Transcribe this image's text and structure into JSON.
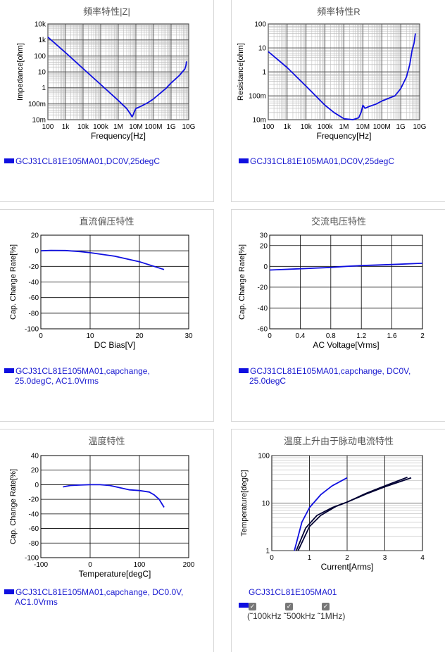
{
  "panels": [
    {
      "title": "頻率特性|Z|",
      "legend": [
        "GCJ31CL81E105MA01,DC0V,25degC"
      ]
    },
    {
      "title": "頻率特性R",
      "legend": [
        "GCJ31CL81E105MA01,DC0V,25degC"
      ]
    },
    {
      "title": "直流偏压特性",
      "legend": [
        "GCJ31CL81E105MA01,capchange,",
        "25.0degC, AC1.0Vrms"
      ]
    },
    {
      "title": "交流电压特性",
      "legend": [
        "GCJ31CL81E105MA01,capchange, DC0V,",
        "25.0degC"
      ]
    },
    {
      "title": "温度特性",
      "legend": [
        "GCJ31CL81E105MA01,capchange, DC0.0V,",
        "AC1.0Vrms"
      ]
    },
    {
      "title": "温度上升由于脉动电流特性",
      "legend": [
        "GCJ31CL81E105MA01"
      ]
    }
  ],
  "ripple_checkboxes": [
    "(˜100kHz",
    "˜500kHz",
    "˜1MHz)"
  ],
  "colors": {
    "series": "#1010e0",
    "dark_series": "#000033"
  },
  "chart_data": [
    {
      "type": "line",
      "xlabel": "Frequency[Hz]",
      "ylabel": "Impedance[ohm]",
      "xscale": "log",
      "yscale": "log",
      "xlim": [
        100,
        10000000000
      ],
      "ylim": [
        0.01,
        10000
      ],
      "xticks": [
        "100",
        "1k",
        "10k",
        "100k",
        "1M",
        "10M",
        "100M",
        "1G",
        "10G"
      ],
      "yticks": [
        "10m",
        "100m",
        "1",
        "10",
        "100",
        "1k",
        "10k"
      ],
      "x": [
        100,
        1000,
        10000,
        100000,
        1000000,
        3000000,
        5000000,
        6000000,
        7000000,
        8000000,
        10000000,
        20000000,
        50000000,
        100000000,
        500000000,
        1000000000,
        3000000000,
        6000000000,
        7000000000,
        7500000000
      ],
      "values": [
        1500,
        160,
        16,
        1.6,
        0.16,
        0.05,
        0.022,
        0.015,
        0.02,
        0.03,
        0.05,
        0.07,
        0.12,
        0.2,
        0.9,
        2,
        6,
        15,
        25,
        45
      ]
    },
    {
      "type": "line",
      "xlabel": "Frequency[Hz]",
      "ylabel": "Resistance[ohm]",
      "xscale": "log",
      "yscale": "log",
      "xlim": [
        100,
        10000000000
      ],
      "ylim": [
        0.01,
        100
      ],
      "xticks": [
        "100",
        "1k",
        "10k",
        "100k",
        "1M",
        "10M",
        "100M",
        "1G",
        "10G"
      ],
      "yticks": [
        "10m",
        "100m",
        "1",
        "10",
        "100"
      ],
      "x": [
        100,
        1000,
        10000,
        100000,
        300000,
        1000000,
        3000000,
        6000000,
        8000000,
        10000000,
        13000000,
        20000000,
        50000000,
        100000000,
        500000000,
        1000000000,
        2000000000,
        3000000000,
        4000000000,
        5000000000,
        6000000000
      ],
      "values": [
        7,
        1.5,
        0.25,
        0.04,
        0.02,
        0.011,
        0.01,
        0.012,
        0.02,
        0.04,
        0.03,
        0.035,
        0.045,
        0.06,
        0.1,
        0.2,
        0.6,
        2,
        8,
        15,
        40
      ]
    },
    {
      "type": "line",
      "xlabel": "DC Bias[V]",
      "ylabel": "Cap. Change Rate[%]",
      "xlim": [
        0,
        30
      ],
      "ylim": [
        -100,
        20
      ],
      "xticks": [
        "0",
        "10",
        "20",
        "30"
      ],
      "yticks": [
        "-100",
        "-80",
        "-60",
        "-40",
        "-20",
        "0",
        "20"
      ],
      "x": [
        0,
        2,
        5,
        8,
        10,
        15,
        20,
        25
      ],
      "values": [
        0,
        0.5,
        0.3,
        -1,
        -2.5,
        -7,
        -14,
        -24
      ]
    },
    {
      "type": "line",
      "xlabel": "AC Voltage[Vrms]",
      "ylabel": "Cap. Change Rate[%]",
      "xlim": [
        0,
        2
      ],
      "ylim": [
        -60,
        30
      ],
      "xticks": [
        "0",
        "0.4",
        "0.8",
        "1.2",
        "1.6",
        "2"
      ],
      "yticks": [
        "-60",
        "-40",
        "-20",
        "0",
        "20",
        "30"
      ],
      "x": [
        0,
        0.4,
        0.8,
        1.0,
        1.2,
        1.6,
        2.0
      ],
      "values": [
        -3.5,
        -2.3,
        -1,
        0,
        0.8,
        1.8,
        3
      ]
    },
    {
      "type": "line",
      "xlabel": "Temperature[degC]",
      "ylabel": "Cap. Change Rate[%]",
      "xlim": [
        -100,
        200
      ],
      "ylim": [
        -100,
        40
      ],
      "xticks": [
        "-100",
        "0",
        "100",
        "200"
      ],
      "yticks": [
        "-100",
        "-80",
        "-60",
        "-40",
        "-20",
        "0",
        "20",
        "40"
      ],
      "x": [
        -55,
        -40,
        -20,
        0,
        20,
        40,
        60,
        80,
        100,
        120,
        130,
        140,
        150
      ],
      "values": [
        -3,
        -1,
        -0.5,
        0,
        0,
        -1,
        -4,
        -7,
        -8,
        -10,
        -14,
        -20,
        -31
      ]
    },
    {
      "type": "line",
      "xlabel": "Current[Arms]",
      "ylabel": "Temperature[degC]",
      "yscale": "log",
      "xlim": [
        0,
        4
      ],
      "ylim": [
        1,
        100
      ],
      "xticks": [
        "0",
        "1",
        "2",
        "3",
        "4"
      ],
      "yticks": [
        "1",
        "10",
        "100"
      ],
      "series": [
        {
          "x": [
            0.6,
            0.8,
            1.0,
            1.3,
            1.6,
            2.0
          ],
          "values": [
            1,
            4,
            8,
            15,
            23,
            34
          ]
        },
        {
          "x": [
            0.65,
            0.9,
            1.2,
            1.6,
            2.0,
            2.5,
            3.0,
            3.6
          ],
          "values": [
            1,
            3,
            5.5,
            8,
            10.5,
            16,
            23,
            35
          ]
        },
        {
          "x": [
            0.7,
            1.0,
            1.3,
            1.7,
            2.0,
            2.5,
            3.0,
            3.7
          ],
          "values": [
            1,
            3.2,
            5.5,
            8.5,
            10.5,
            15.5,
            22,
            34
          ]
        }
      ]
    }
  ]
}
